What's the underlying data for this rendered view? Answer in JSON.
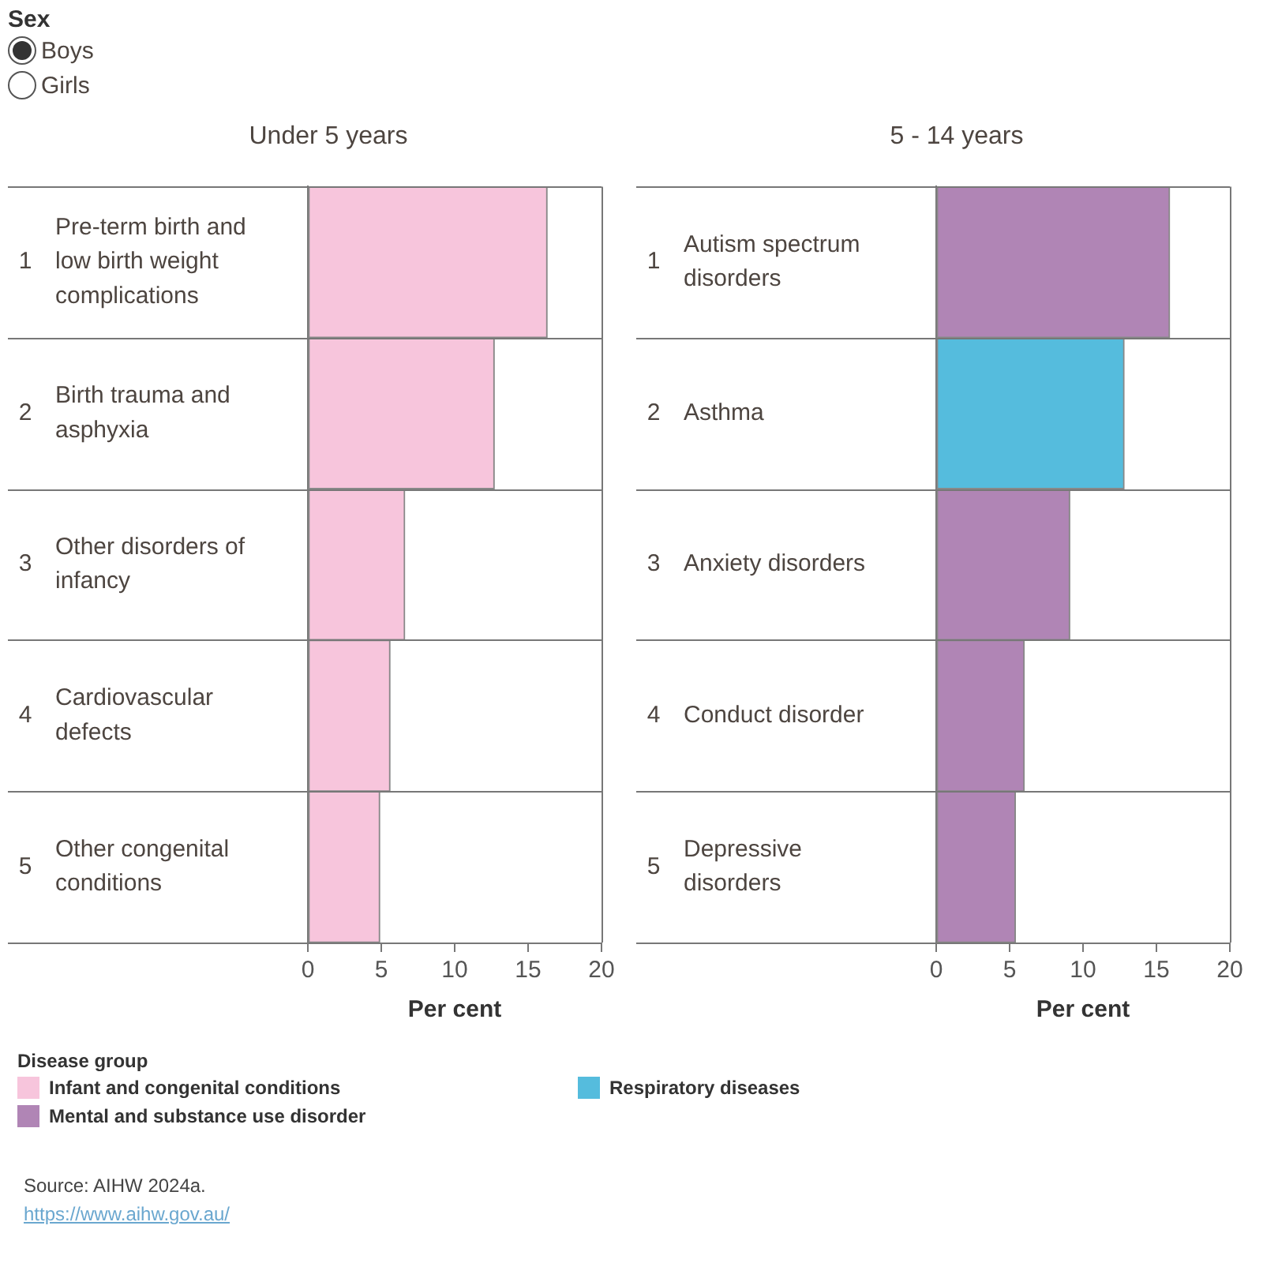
{
  "chart_data": [
    {
      "type": "other",
      "title": "Sex",
      "annotations": [
        "Boys",
        "Girls"
      ]
    },
    {
      "type": "bar",
      "title": "Under 5 years",
      "orientation": "horizontal",
      "stacked": true,
      "legend": "bottom",
      "xlabel": "Per cent",
      "categories": [
        "Pre-term birth and low birth weight complications",
        "Birth trauma and asphyxia",
        "Other disorders of infancy",
        "Cardiovascular defects",
        "Other congenital conditions"
      ],
      "y2_categories": [
        "1",
        "2",
        "3",
        "4",
        "5"
      ],
      "series": [
        {
          "name": "Infant and congenital conditions",
          "color": "#f7c5dc",
          "values": [
            16.3,
            12.7,
            6.6,
            5.6,
            4.9
          ]
        }
      ],
      "xlim": [
        0,
        20
      ],
      "xticks": [
        0,
        5,
        10,
        15,
        20
      ]
    },
    {
      "type": "bar",
      "title": "5 - 14 years",
      "orientation": "horizontal",
      "stacked": true,
      "legend": "bottom",
      "xlabel": "Per cent",
      "legend_title": "Disease group",
      "categories": [
        "Autism spectrum disorders",
        "Asthma",
        "Anxiety disorders",
        "Conduct disorder",
        "Depressive disorders"
      ],
      "y2_categories": [
        "1",
        "2",
        "3",
        "4",
        "5"
      ],
      "series": [
        {
          "name": "Mental and substance use disorder",
          "color": "#b085b5",
          "values": [
            15.9,
            null,
            9.1,
            6.0,
            5.4
          ]
        },
        {
          "name": "Respiratory diseases",
          "color": "#55bcdd",
          "values": [
            null,
            12.8,
            null,
            null,
            null
          ]
        }
      ],
      "xlim": [
        0,
        20
      ],
      "xticks": [
        0,
        5,
        10,
        15,
        20
      ],
      "annotations": [
        "Source: AIHW 2024a.",
        "https://www.aihw.gov.au/"
      ]
    }
  ]
}
